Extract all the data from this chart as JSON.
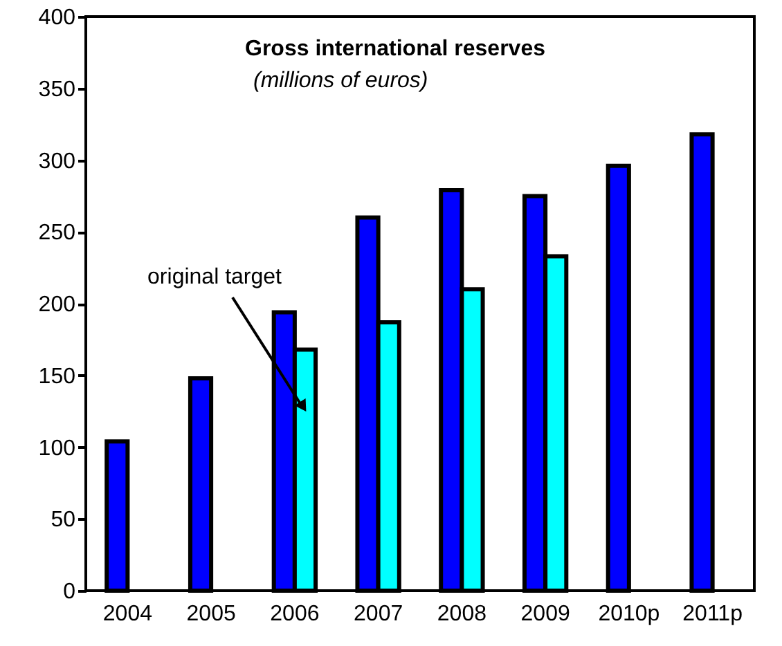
{
  "chart_data": {
    "type": "bar",
    "title": "Gross international reserves",
    "subtitle": "(millions of euros)",
    "categories": [
      "2004",
      "2005",
      "2006",
      "2007",
      "2008",
      "2009",
      "2010p",
      "2011p"
    ],
    "series": [
      {
        "color": "#0000ff",
        "values": [
          104,
          148,
          194,
          260,
          279,
          275,
          296,
          318
        ]
      },
      {
        "color": "#00ffff",
        "values": [
          null,
          null,
          168,
          187,
          210,
          233,
          null,
          null
        ]
      }
    ],
    "ylim": [
      0,
      400
    ],
    "yticks": [
      0,
      50,
      100,
      150,
      200,
      250,
      300,
      350,
      400
    ],
    "grid": false,
    "annotations": [
      "original target"
    ]
  }
}
